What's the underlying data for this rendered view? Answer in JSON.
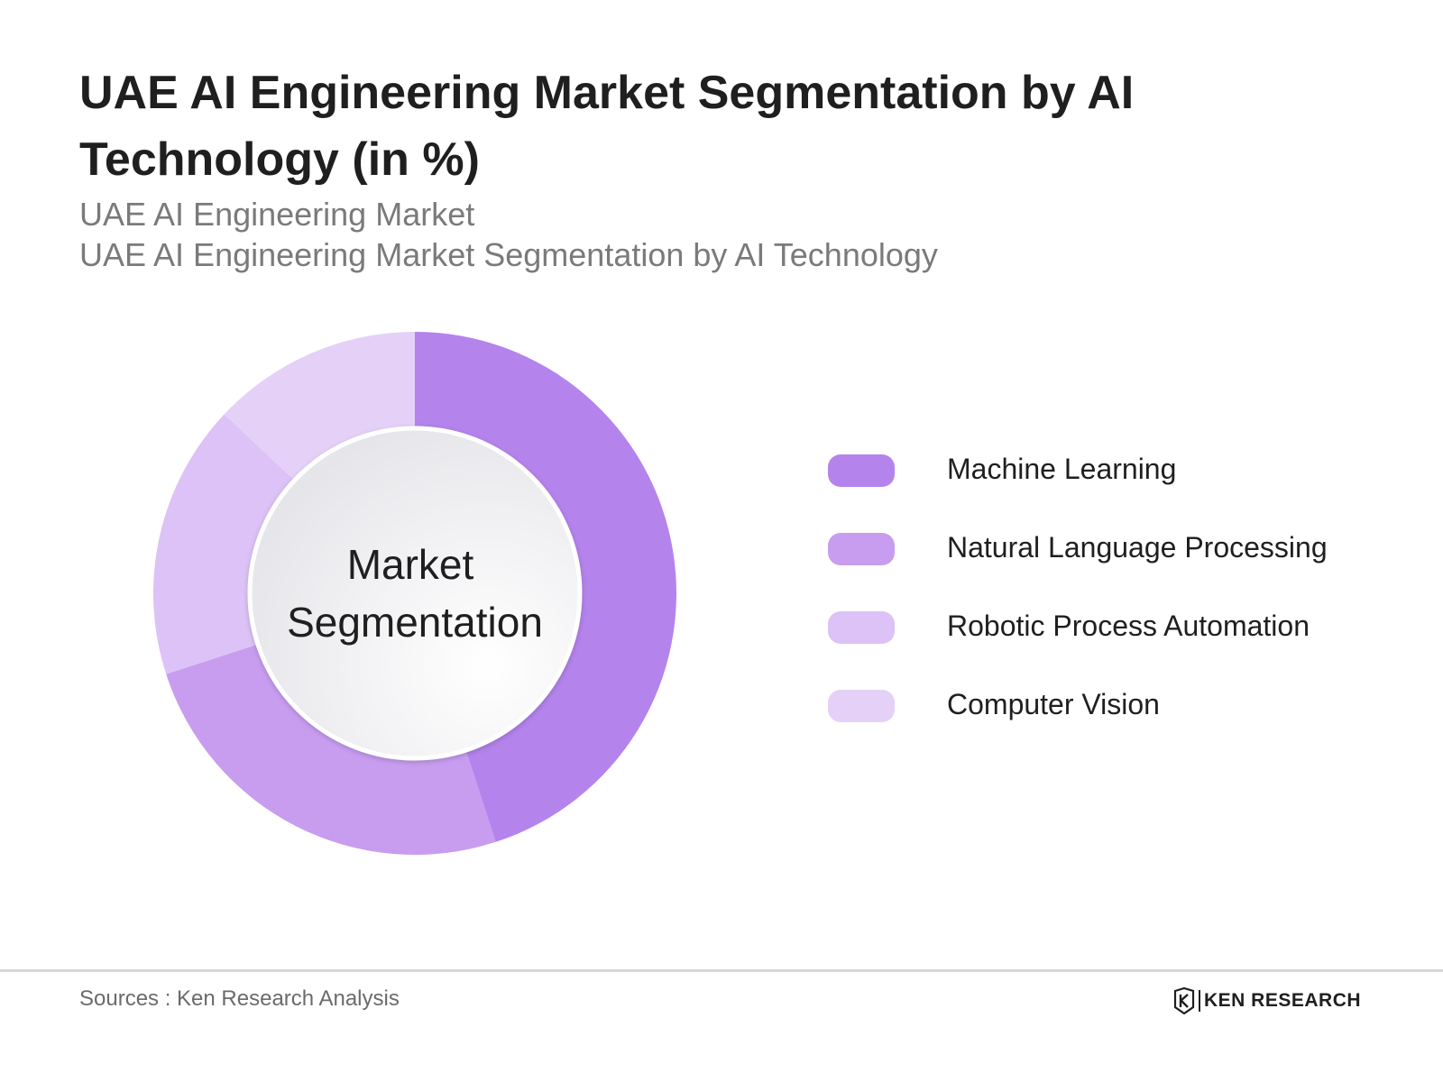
{
  "title": "UAE AI Engineering Market Segmentation by AI Technology (in %)",
  "subtitles": [
    "UAE AI Engineering Market",
    "UAE AI Engineering Market Segmentation by AI Technology"
  ],
  "center_label": [
    "Market",
    "Segmentation"
  ],
  "source": "Sources : Ken Research Analysis",
  "brand": {
    "name": "KEN RESEARCH",
    "icon": "ken-research-logo-icon"
  },
  "chart_data": {
    "type": "pie",
    "donut": true,
    "title": "UAE AI Engineering Market Segmentation by AI Technology (in %)",
    "categories": [
      "Machine Learning",
      "Natural Language Processing",
      "Robotic Process Automation",
      "Computer Vision"
    ],
    "values": [
      45,
      25,
      17,
      13
    ],
    "colors": [
      "#b483ec",
      "#c89df0",
      "#dcc2f6",
      "#e5d1f8"
    ],
    "legend_position": "right"
  }
}
